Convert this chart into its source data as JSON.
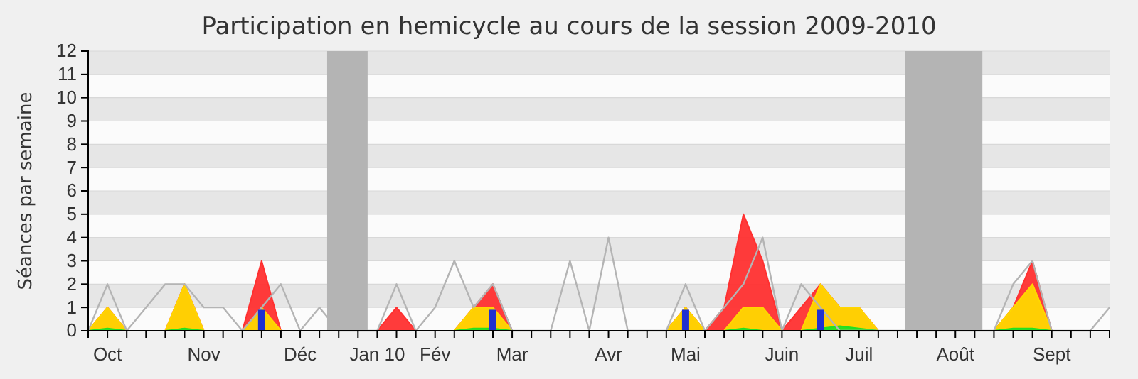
{
  "chart_data": {
    "type": "area",
    "title": "Participation en hemicycle au cours de la session 2009-2010",
    "ylabel": "Séances par semaine",
    "categories": [
      null,
      "Oct",
      null,
      null,
      null,
      null,
      "Nov",
      null,
      null,
      null,
      null,
      "Déc",
      null,
      null,
      null,
      "Jan 10",
      null,
      null,
      "Fév",
      null,
      null,
      null,
      "Mar",
      null,
      null,
      null,
      null,
      "Avr",
      null,
      null,
      null,
      "Mai",
      null,
      null,
      null,
      null,
      "Juin",
      null,
      null,
      null,
      "Juil",
      null,
      null,
      null,
      null,
      "Août",
      null,
      null,
      null,
      null,
      "Sept",
      null,
      null,
      null
    ],
    "ylim": [
      0,
      12
    ],
    "yticks": [
      0,
      1,
      2,
      3,
      4,
      5,
      6,
      7,
      8,
      9,
      10,
      11,
      12
    ],
    "grid": "y",
    "series": [
      {
        "color": "#ff3030",
        "values": [
          0,
          1,
          0,
          0,
          0,
          2,
          0,
          0,
          0,
          3,
          0,
          0,
          0,
          0,
          0,
          0,
          1,
          0,
          0,
          0,
          1,
          2,
          0,
          0,
          0,
          0,
          0,
          0,
          0,
          0,
          0,
          1,
          0,
          1,
          5,
          3,
          0,
          1,
          2,
          1,
          1,
          0,
          0,
          0,
          0,
          0,
          0,
          0,
          1,
          3,
          0,
          0,
          0,
          0
        ]
      },
      {
        "color": "#ffd700",
        "values": [
          0,
          1,
          0,
          0,
          0,
          2,
          0,
          0,
          0,
          1,
          0,
          0,
          0,
          0,
          0,
          0,
          0,
          0,
          0,
          0,
          1,
          1,
          0,
          0,
          0,
          0,
          0,
          0,
          0,
          0,
          0,
          1,
          0,
          0,
          1,
          1,
          0,
          0,
          2,
          1,
          1,
          0,
          0,
          0,
          0,
          0,
          0,
          0,
          1,
          2,
          0,
          0,
          0,
          0
        ]
      },
      {
        "color": "#22e022",
        "values": [
          0,
          0.1,
          0,
          0,
          0,
          0.1,
          0,
          0,
          0,
          0,
          0,
          0,
          0,
          0,
          0,
          0,
          0,
          0,
          0,
          0,
          0.1,
          0.1,
          0,
          0,
          0,
          0,
          0,
          0,
          0,
          0,
          0,
          0,
          0,
          0,
          0.1,
          0,
          0,
          0,
          0.1,
          0.2,
          0.1,
          0,
          0,
          0,
          0,
          0,
          0,
          0,
          0.1,
          0.1,
          0,
          0,
          0,
          0
        ]
      },
      {
        "type": "line",
        "color": "#b4b4b4",
        "values": [
          0,
          2,
          0,
          1,
          2,
          2,
          1,
          1,
          0,
          1,
          2,
          0,
          1,
          0,
          0,
          0,
          2,
          0,
          1,
          3,
          1,
          2,
          0,
          0,
          0,
          3,
          0,
          4,
          0,
          0,
          0,
          2,
          0,
          1,
          2,
          4,
          0,
          2,
          1,
          0,
          0,
          0,
          0,
          0,
          0,
          0,
          0,
          0,
          2,
          3,
          0,
          0,
          0,
          1
        ]
      },
      {
        "type": "bar",
        "color": "#2030d0",
        "values": [
          null,
          null,
          null,
          null,
          null,
          null,
          null,
          null,
          null,
          0.9,
          null,
          null,
          null,
          null,
          null,
          null,
          null,
          null,
          null,
          null,
          null,
          0.9,
          null,
          null,
          null,
          null,
          null,
          null,
          null,
          null,
          null,
          0.9,
          null,
          null,
          null,
          null,
          null,
          null,
          0.9,
          null,
          null,
          null,
          null,
          null,
          null,
          null,
          null,
          null,
          null,
          null,
          null,
          null,
          null,
          null
        ]
      }
    ]
  }
}
